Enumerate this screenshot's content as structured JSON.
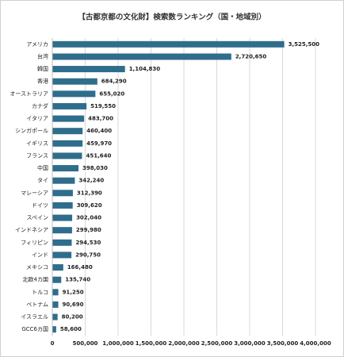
{
  "chart_data": {
    "type": "bar",
    "orientation": "horizontal",
    "title": "【古都京都の文化財】検索数ランキング（国・地域別）",
    "categories": [
      "アメリカ",
      "台湾",
      "韓国",
      "香港",
      "オーストラリア",
      "カナダ",
      "イタリア",
      "シンガポール",
      "イギリス",
      "フランス",
      "中国",
      "タイ",
      "マレーシア",
      "ドイツ",
      "スペイン",
      "インドネシア",
      "フィリピン",
      "インド",
      "メキシコ",
      "北欧4カ国",
      "トルコ",
      "ベトナム",
      "イスラエル",
      "GCC6カ国"
    ],
    "values": [
      3525500,
      2720650,
      1104830,
      684290,
      655020,
      519550,
      483700,
      460400,
      459970,
      451640,
      398030,
      342240,
      312390,
      309620,
      302040,
      299980,
      294530,
      290750,
      166480,
      135740,
      91250,
      90690,
      80200,
      58600
    ],
    "value_labels": [
      "3,525,500",
      "2,720,650",
      "1,104,830",
      "684,290",
      "655,020",
      "519,550",
      "483,700",
      "460,400",
      "459,970",
      "451,640",
      "398,030",
      "342,240",
      "312,390",
      "309,620",
      "302,040",
      "299,980",
      "294,530",
      "290,750",
      "166,480",
      "135,740",
      "91,250",
      "90,690",
      "80,200",
      "58,600"
    ],
    "color": "#2f6d8c",
    "xlim": [
      0,
      4000000
    ],
    "xticks": [
      0,
      {
        "value": 500000,
        "label": "500,000"
      },
      {
        "value": 1000000,
        "label": "1,000,000"
      },
      {
        "value": 1500000,
        "label": "1,500,000"
      },
      {
        "value": 2000000,
        "label": "2,000,000"
      },
      {
        "value": 2500000,
        "label": "2,500,000"
      },
      {
        "value": 3000000,
        "label": "3,000,000"
      },
      {
        "value": 3500000,
        "label": "3,500,000"
      },
      {
        "value": 4000000,
        "label": "4,000,000"
      }
    ],
    "grid": true
  }
}
